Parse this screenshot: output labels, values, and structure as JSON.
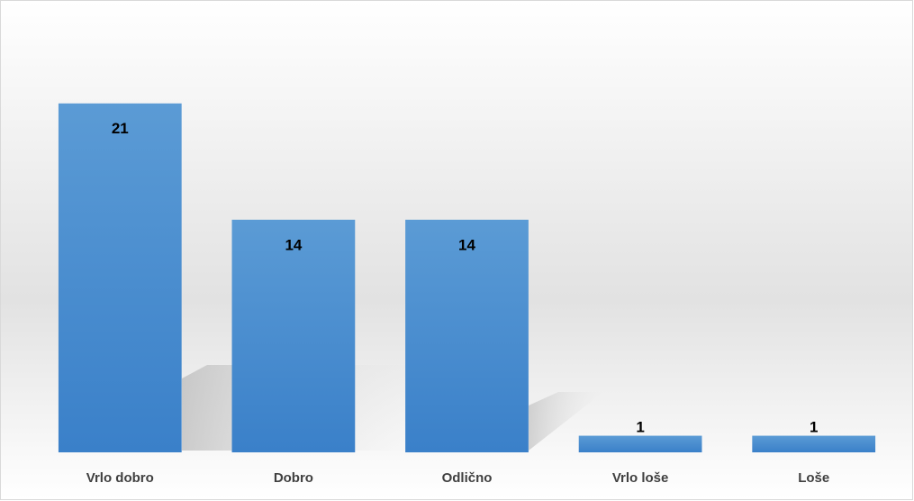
{
  "chart_data": {
    "type": "bar",
    "categories": [
      "Vrlo dobro",
      "Dobro",
      "Odlično",
      "Vrlo loše",
      "Loše"
    ],
    "values": [
      21,
      14,
      14,
      1,
      1
    ],
    "color": "#4a8fd2",
    "ylim": [
      0,
      25
    ]
  }
}
